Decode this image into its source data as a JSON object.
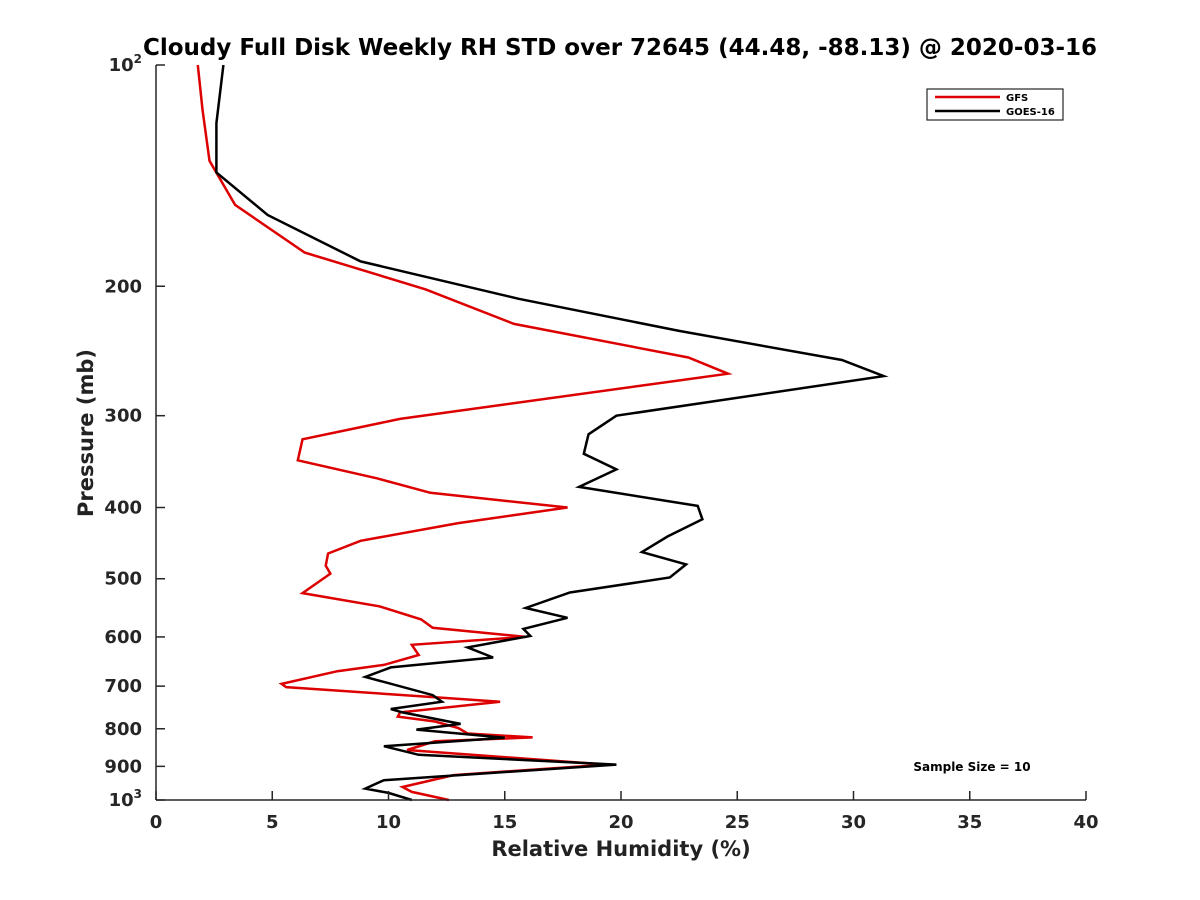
{
  "chart_data": {
    "type": "line",
    "title": "Cloudy Full Disk Weekly RH STD over 72645 (44.48, -88.13) @ 2020-03-16",
    "xlabel": "Relative Humidity (%)",
    "ylabel": "Pressure (mb)",
    "xlim": [
      0,
      40
    ],
    "ylim": [
      100,
      1000
    ],
    "y_scale": "log",
    "y_reversed": true,
    "grid": false,
    "x_ticks": [
      0,
      5,
      10,
      15,
      20,
      25,
      30,
      35,
      40
    ],
    "x_tick_labels": [
      "0",
      "5",
      "10",
      "15",
      "20",
      "25",
      "30",
      "35",
      "40"
    ],
    "y_ticks": [
      100,
      200,
      300,
      400,
      500,
      600,
      700,
      800,
      900,
      1000
    ],
    "y_tick_labels": [
      {
        "base": "10",
        "sup": "2"
      },
      {
        "base": "200",
        "sup": ""
      },
      {
        "base": "300",
        "sup": ""
      },
      {
        "base": "400",
        "sup": ""
      },
      {
        "base": "500",
        "sup": ""
      },
      {
        "base": "600",
        "sup": ""
      },
      {
        "base": "700",
        "sup": ""
      },
      {
        "base": "800",
        "sup": ""
      },
      {
        "base": "900",
        "sup": ""
      },
      {
        "base": "10",
        "sup": "3"
      }
    ],
    "legend_position": "top-right",
    "annotation": "Sample Size = 10",
    "series": [
      {
        "name": "GFS",
        "color": "#dd0000",
        "points": [
          [
            1.8,
            100
          ],
          [
            2.0,
            115
          ],
          [
            2.3,
            135
          ],
          [
            3.4,
            155
          ],
          [
            6.4,
            180
          ],
          [
            11.6,
            202
          ],
          [
            15.4,
            225
          ],
          [
            22.9,
            250
          ],
          [
            24.6,
            263
          ],
          [
            10.5,
            303
          ],
          [
            6.3,
            323
          ],
          [
            6.1,
            345
          ],
          [
            9.5,
            365
          ],
          [
            11.8,
            382
          ],
          [
            17.7,
            400
          ],
          [
            13.0,
            420
          ],
          [
            8.8,
            444
          ],
          [
            7.4,
            462
          ],
          [
            7.3,
            480
          ],
          [
            7.5,
            492
          ],
          [
            6.3,
            523
          ],
          [
            9.6,
            545
          ],
          [
            11.4,
            568
          ],
          [
            11.9,
            583
          ],
          [
            15.9,
            600
          ],
          [
            11.0,
            615
          ],
          [
            11.3,
            635
          ],
          [
            9.8,
            655
          ],
          [
            7.8,
            668
          ],
          [
            5.4,
            695
          ],
          [
            5.6,
            702
          ],
          [
            12.0,
            725
          ],
          [
            14.8,
            735
          ],
          [
            10.5,
            760
          ],
          [
            10.4,
            770
          ],
          [
            12.0,
            782
          ],
          [
            13.0,
            798
          ],
          [
            13.4,
            812
          ],
          [
            16.2,
            822
          ],
          [
            12.0,
            832
          ],
          [
            10.8,
            855
          ],
          [
            19.4,
            895
          ],
          [
            12.8,
            925
          ],
          [
            10.6,
            960
          ],
          [
            11.0,
            975
          ],
          [
            12.6,
            1000
          ]
        ]
      },
      {
        "name": "GOES-16",
        "color": "#000000",
        "points": [
          [
            2.9,
            100
          ],
          [
            2.6,
            120
          ],
          [
            2.6,
            140
          ],
          [
            4.8,
            160
          ],
          [
            8.8,
            185
          ],
          [
            15.6,
            208
          ],
          [
            22.5,
            230
          ],
          [
            29.5,
            252
          ],
          [
            31.3,
            265
          ],
          [
            19.8,
            300
          ],
          [
            18.6,
            318
          ],
          [
            18.4,
            338
          ],
          [
            19.8,
            355
          ],
          [
            18.2,
            375
          ],
          [
            23.3,
            398
          ],
          [
            23.5,
            415
          ],
          [
            22.0,
            438
          ],
          [
            20.9,
            460
          ],
          [
            22.8,
            478
          ],
          [
            22.1,
            498
          ],
          [
            17.8,
            522
          ],
          [
            15.9,
            548
          ],
          [
            17.7,
            565
          ],
          [
            15.8,
            585
          ],
          [
            16.1,
            598
          ],
          [
            13.4,
            620
          ],
          [
            14.5,
            640
          ],
          [
            10.1,
            660
          ],
          [
            9.0,
            680
          ],
          [
            11.9,
            720
          ],
          [
            12.3,
            735
          ],
          [
            10.1,
            752
          ],
          [
            10.6,
            760
          ],
          [
            13.1,
            788
          ],
          [
            11.2,
            802
          ],
          [
            15.0,
            823
          ],
          [
            9.8,
            845
          ],
          [
            11.3,
            868
          ],
          [
            19.8,
            895
          ],
          [
            9.8,
            940
          ],
          [
            9.0,
            965
          ],
          [
            10.0,
            978
          ],
          [
            11.0,
            1000
          ]
        ]
      }
    ]
  }
}
